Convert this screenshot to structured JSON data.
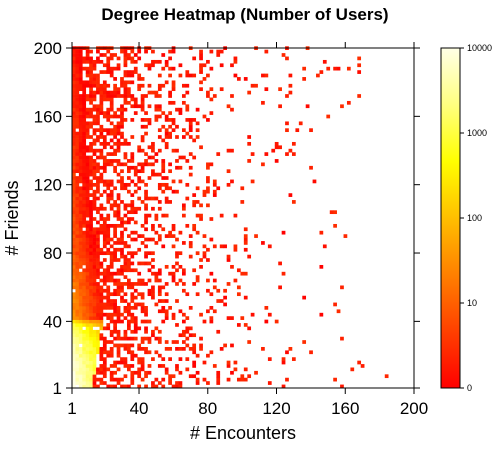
{
  "chart_data": {
    "type": "heatmap",
    "title": "Degree Heatmap (Number of Users)",
    "xlabel": "# Encounters",
    "ylabel": "# Friends",
    "xlim": [
      1,
      200
    ],
    "ylim": [
      1,
      200
    ],
    "x_ticks": [
      1,
      40,
      80,
      120,
      160,
      200
    ],
    "y_ticks": [
      1,
      40,
      80,
      120,
      160,
      200
    ],
    "colorbar": {
      "scale": "log",
      "range": [
        0,
        10000
      ],
      "ticks": [
        0,
        10,
        100,
        1000,
        10000
      ],
      "colors": [
        "#ff0000",
        "#ff4000",
        "#ff8000",
        "#ffbf00",
        "#ffff00",
        "#ffff80",
        "#ffffe6"
      ]
    },
    "grid": false,
    "density_profile": [
      {
        "y": 1,
        "x_max_dense": 12,
        "x_max_sparse": 190,
        "peak_count": 10000
      },
      {
        "y": 40,
        "x_max_dense": 18,
        "x_max_sparse": 160,
        "peak_count": 30
      },
      {
        "y": 80,
        "x_max_dense": 14,
        "x_max_sparse": 175,
        "peak_count": 8
      },
      {
        "y": 120,
        "x_max_dense": 10,
        "x_max_sparse": 150,
        "peak_count": 4
      },
      {
        "y": 160,
        "x_max_dense": 8,
        "x_max_sparse": 170,
        "peak_count": 3
      },
      {
        "y": 200,
        "x_max_dense": 6,
        "x_max_sparse": 185,
        "peak_count": 2
      }
    ]
  }
}
